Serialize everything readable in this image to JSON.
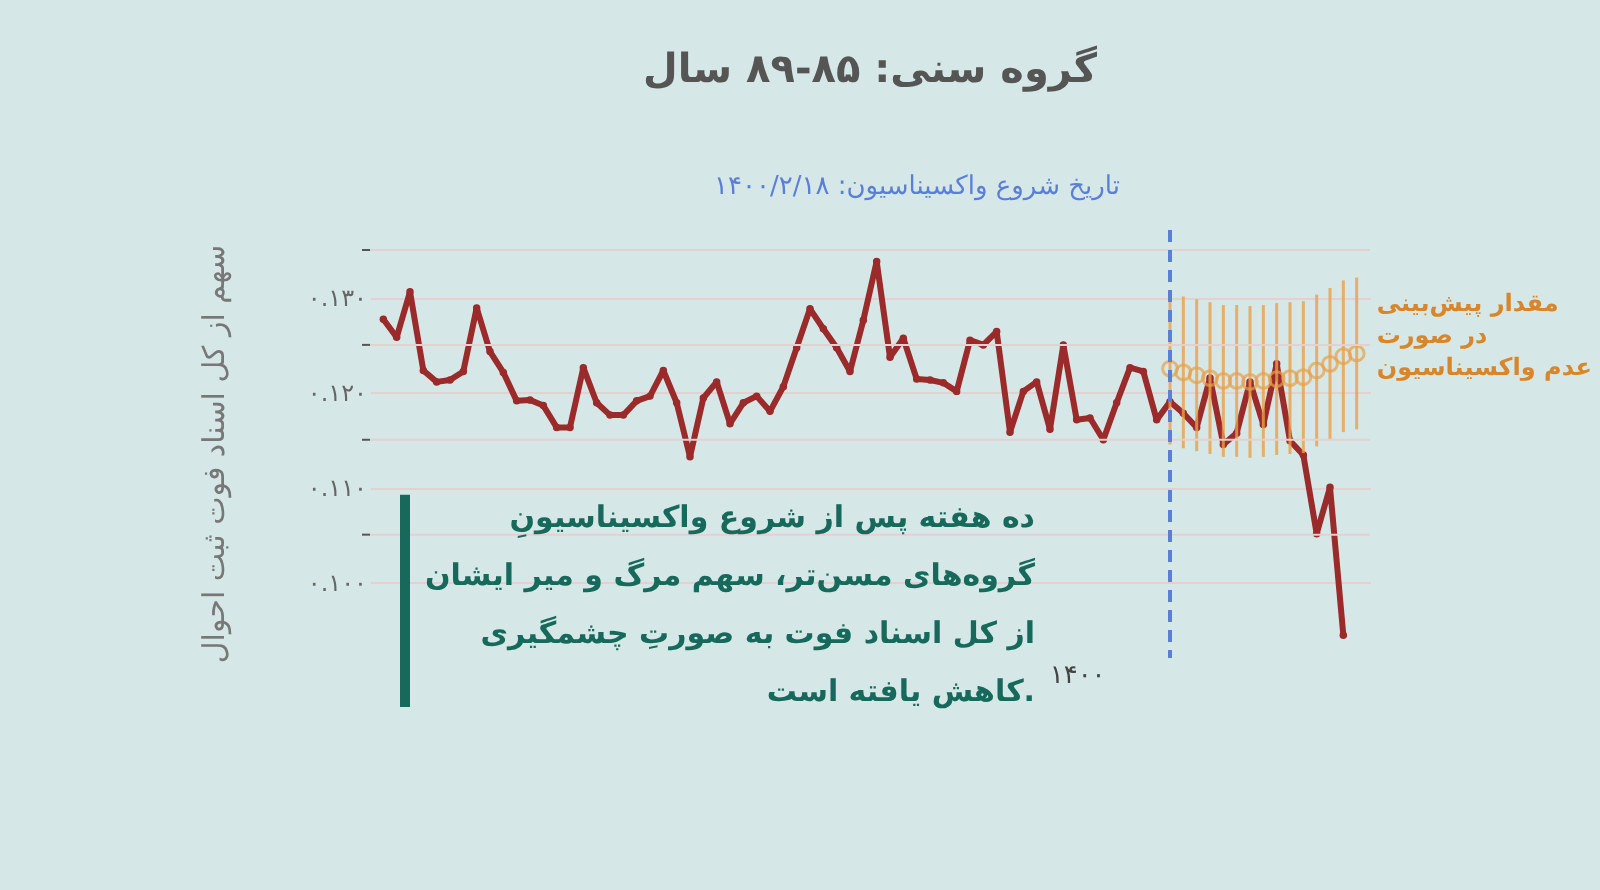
{
  "chart_data": {
    "type": "line",
    "title": "گروه سنی: ۸۵-۸۹ سال",
    "ylabel": "سهم از کل اسناد فوت ثبت احوال",
    "categories": [
      null,
      null,
      null,
      null,
      null,
      null,
      null,
      null,
      null,
      null,
      null,
      null,
      null,
      null,
      null,
      null,
      null,
      null,
      null,
      null,
      null,
      null,
      null,
      null,
      null,
      null,
      null,
      null,
      null,
      null,
      null,
      null,
      null,
      null,
      null,
      null,
      null,
      null,
      null,
      null,
      null,
      null,
      null,
      null,
      null,
      null,
      null,
      null,
      null,
      null,
      null,
      null,
      "۱۴۰۰",
      null,
      null,
      null,
      null,
      null,
      null,
      null,
      null,
      null,
      null,
      null,
      null,
      null,
      null,
      null,
      null,
      null,
      null,
      null,
      null,
      null
    ],
    "series": [
      {
        "color": "#9b2a2a",
        "marker": "circle",
        "values": [
          0.1277,
          0.1258,
          0.1306,
          0.1223,
          0.1211,
          0.1213,
          0.1222,
          0.1289,
          0.1243,
          0.1221,
          0.1191,
          0.1192,
          0.1186,
          0.1163,
          0.1163,
          0.1226,
          0.1189,
          0.1176,
          0.1176,
          0.1191,
          0.1196,
          0.1223,
          0.1189,
          0.1132,
          0.1194,
          0.1211,
          0.1167,
          0.1189,
          0.1196,
          0.118,
          0.1206,
          0.1247,
          0.1288,
          0.1267,
          0.1247,
          0.1222,
          0.1276,
          0.1338,
          0.1237,
          0.1257,
          0.1214,
          0.1213,
          0.121,
          0.1201,
          0.1255,
          0.125,
          0.1264,
          0.1158,
          0.1201,
          0.1211,
          0.1161,
          0.125,
          0.1171,
          0.1173,
          0.115,
          0.1189,
          0.1226,
          0.1222,
          0.1171,
          0.119,
          0.1178,
          0.1163,
          0.1215,
          0.1145,
          0.1157,
          0.1211,
          0.1166,
          0.123,
          0.1149,
          0.1134,
          0.1051,
          0.11,
          0.0944,
          null
        ]
      },
      {
        "type": "scatter",
        "name": "مقدار پیش‌بینی\nدر صورت\nعدم واکسیناسیون",
        "color": "#e8a04a",
        "marker": "circle",
        "values": [
          null,
          null,
          null,
          null,
          null,
          null,
          null,
          null,
          null,
          null,
          null,
          null,
          null,
          null,
          null,
          null,
          null,
          null,
          null,
          null,
          null,
          null,
          null,
          null,
          null,
          null,
          null,
          null,
          null,
          null,
          null,
          null,
          null,
          null,
          null,
          null,
          null,
          null,
          null,
          null,
          null,
          null,
          null,
          null,
          null,
          null,
          null,
          null,
          null,
          null,
          null,
          null,
          null,
          null,
          null,
          null,
          null,
          null,
          null,
          0.1225,
          0.1221,
          0.1218,
          0.1215,
          0.1212,
          0.1212,
          0.1211,
          0.1212,
          0.1214,
          0.1215,
          0.1216,
          0.1223,
          0.123,
          0.1238,
          0.1241
        ],
        "errors": [
          null,
          null,
          null,
          null,
          null,
          null,
          null,
          null,
          null,
          null,
          null,
          null,
          null,
          null,
          null,
          null,
          null,
          null,
          null,
          null,
          null,
          null,
          null,
          null,
          null,
          null,
          null,
          null,
          null,
          null,
          null,
          null,
          null,
          null,
          null,
          null,
          null,
          null,
          null,
          null,
          null,
          null,
          null,
          null,
          null,
          null,
          null,
          null,
          null,
          null,
          null,
          null,
          null,
          null,
          null,
          null,
          null,
          null,
          null,
          0.008,
          0.008,
          0.008,
          0.008,
          0.008,
          0.008,
          0.008,
          0.008,
          0.008,
          0.008,
          0.008,
          0.008,
          0.008,
          0.008,
          0.008
        ]
      }
    ],
    "ylim": [
      0.092,
      0.135
    ],
    "yticks": [
      {
        "value": 0.1,
        "label": "۰.۱۰۰"
      },
      {
        "value": 0.105,
        "label": null
      },
      {
        "value": 0.11,
        "label": "۰.۱۱۰"
      },
      {
        "value": 0.115,
        "label": null
      },
      {
        "value": 0.12,
        "label": "۰.۱۲۰"
      },
      {
        "value": 0.125,
        "label": null
      },
      {
        "value": 0.13,
        "label": "۰.۱۳۰"
      },
      {
        "value": 0.135,
        "label": null
      }
    ],
    "annotations": [
      "تاریخ شروع واکسیناسیون:  ۱۴۰۰/۲/۱۸",
      "ده هفته پس از شروع واکسیناسیونِ\nگروه‌های مسن‌تر، سهم مرگ و میر ایشان\nاز کل اسناد فوت به صورتِ چشمگیری\nکاهش یافته است."
    ],
    "grid": "y"
  }
}
